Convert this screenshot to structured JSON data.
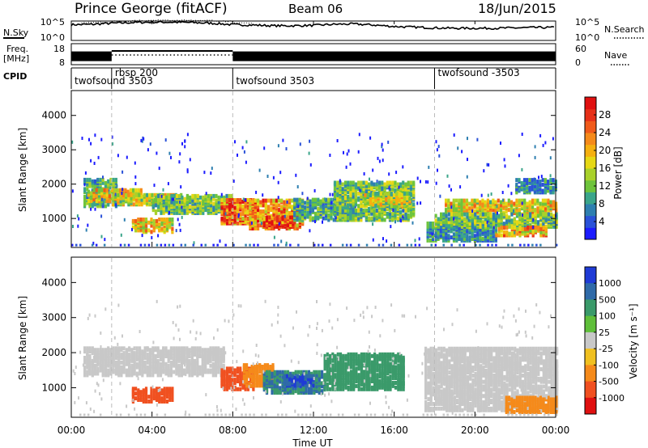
{
  "header": {
    "title": "Prince George (fitACF)",
    "beam": "Beam 06",
    "date": "18/Jun/2015"
  },
  "chart_data": [
    {
      "type": "line",
      "name": "noise",
      "ylabel": "N.Sky",
      "right_label": "N.Search",
      "yticks_left": [
        "10^5",
        "10^0"
      ],
      "yticks_right": [
        "10^5",
        "10^0"
      ],
      "x": [
        0,
        1,
        2,
        3,
        4,
        5,
        6,
        7,
        8,
        9,
        10,
        11,
        12,
        13,
        14,
        15,
        16,
        17,
        18,
        19,
        20,
        21,
        22,
        23,
        24
      ],
      "series": [
        {
          "values": [
            4.2,
            4.3,
            4.6,
            4.8,
            4.9,
            4.9,
            4.8,
            4.6,
            4.2,
            4.1,
            3.9,
            3.9,
            4.0,
            4.3,
            4.4,
            4.1,
            3.7,
            3.5,
            3.3,
            3.2,
            3.2,
            3.2,
            3.3,
            3.4,
            3.4
          ]
        }
      ]
    },
    {
      "type": "line",
      "name": "freq",
      "ylabel": "Freq.",
      "yunit": "[MHz]",
      "right_label": "Nave",
      "yticks_left": [
        "18",
        "8"
      ],
      "yticks_right": [
        "60",
        "0"
      ],
      "segments": [
        {
          "from": 0,
          "to": 2,
          "value": 11.5
        },
        {
          "from": 2,
          "to": 8,
          "value": 13.0
        },
        {
          "from": 8,
          "to": 24,
          "value": 11.5
        }
      ]
    },
    {
      "type": "table",
      "name": "cpid",
      "label": "CPID",
      "entries": [
        {
          "start": 0,
          "text": "twofsound 3503"
        },
        {
          "start": 2,
          "text": "rbsp 200"
        },
        {
          "start": 8,
          "text": "twofsound 3503"
        },
        {
          "start": 18,
          "text": "twofsound -3503"
        }
      ]
    },
    {
      "type": "heatmap",
      "name": "power",
      "ylabel": "Slant Range [km]",
      "yticks": [
        1000,
        2000,
        3000,
        4000
      ],
      "ylim": [
        180,
        4700
      ],
      "colorbar": {
        "label": "Power [dB]",
        "ticks": [
          4,
          8,
          12,
          16,
          20,
          24,
          28
        ],
        "range": [
          0,
          32
        ],
        "colors": [
          "#1c1cff",
          "#2a52d8",
          "#2e7fb0",
          "#3aa58a",
          "#6ec43c",
          "#a9d12a",
          "#e6d815",
          "#f5b010",
          "#f58a1a",
          "#f05a1a",
          "#e63018",
          "#e01010"
        ]
      },
      "regions": [
        {
          "t0": 0.6,
          "t1": 2.2,
          "r0": 1300,
          "r1": 2100,
          "v": 10
        },
        {
          "t0": 0.8,
          "t1": 3.5,
          "r0": 1450,
          "r1": 1800,
          "v": 18
        },
        {
          "t0": 2.0,
          "t1": 5.5,
          "r0": 1350,
          "r1": 1650,
          "v": 16
        },
        {
          "t0": 4.0,
          "t1": 8.0,
          "r0": 1100,
          "r1": 1600,
          "v": 12
        },
        {
          "t0": 3.0,
          "t1": 5.0,
          "r0": 550,
          "r1": 950,
          "v": 18
        },
        {
          "t0": 7.4,
          "t1": 9.2,
          "r0": 800,
          "r1": 1500,
          "v": 24
        },
        {
          "t0": 8.8,
          "t1": 11.5,
          "r0": 650,
          "r1": 1500,
          "v": 22
        },
        {
          "t0": 9.5,
          "t1": 11.0,
          "r0": 700,
          "r1": 1000,
          "v": 28
        },
        {
          "t0": 11.0,
          "t1": 14.0,
          "r0": 900,
          "r1": 1500,
          "v": 10
        },
        {
          "t0": 13.0,
          "t1": 17.0,
          "r0": 900,
          "r1": 2000,
          "v": 12
        },
        {
          "t0": 14.5,
          "t1": 16.8,
          "r0": 1300,
          "r1": 1700,
          "v": 16
        },
        {
          "t0": 17.6,
          "t1": 21.0,
          "r0": 300,
          "r1": 800,
          "v": 8
        },
        {
          "t0": 18.5,
          "t1": 24.0,
          "r0": 1100,
          "r1": 1500,
          "v": 18
        },
        {
          "t0": 18.0,
          "t1": 24.0,
          "r0": 700,
          "r1": 1100,
          "v": 12
        },
        {
          "t0": 21.0,
          "t1": 23.5,
          "r0": 450,
          "r1": 700,
          "v": 20
        },
        {
          "t0": 22.0,
          "t1": 24.0,
          "r0": 1700,
          "r1": 2100,
          "v": 8
        }
      ]
    },
    {
      "type": "heatmap",
      "name": "velocity",
      "ylabel": "Slant Range [km]",
      "xlabel": "Time UT",
      "xticks": [
        "00:00",
        "04:00",
        "08:00",
        "12:00",
        "16:00",
        "20:00",
        "00:00"
      ],
      "yticks": [
        1000,
        2000,
        3000,
        4000
      ],
      "ylim": [
        180,
        4700
      ],
      "colorbar": {
        "label": "Velocity [m s⁻¹]",
        "ticks": [
          "1000",
          "500",
          "100",
          "25",
          "-25",
          "-100",
          "-500",
          "-1000"
        ],
        "colors": [
          "#1f3bd6",
          "#2f6aa8",
          "#3a9a6a",
          "#5fbf3a",
          "#c8c8c8",
          "#f0c020",
          "#f58a1a",
          "#f05020",
          "#e01010"
        ]
      },
      "regions": [
        {
          "t0": 0.6,
          "t1": 7.5,
          "r0": 1300,
          "r1": 2100,
          "v": 0
        },
        {
          "t0": 3.0,
          "t1": 5.0,
          "r0": 550,
          "r1": 950,
          "v": -500
        },
        {
          "t0": 7.4,
          "t1": 9.0,
          "r0": 900,
          "r1": 1500,
          "v": -500
        },
        {
          "t0": 8.5,
          "t1": 10.0,
          "r0": 1000,
          "r1": 1600,
          "v": -100
        },
        {
          "t0": 9.5,
          "t1": 12.5,
          "r0": 800,
          "r1": 1400,
          "v": 300
        },
        {
          "t0": 10.5,
          "t1": 12.0,
          "r0": 1000,
          "r1": 1300,
          "v": 800
        },
        {
          "t0": 12.5,
          "t1": 16.5,
          "r0": 900,
          "r1": 1900,
          "v": 150
        },
        {
          "t0": 17.5,
          "t1": 24.0,
          "r0": 300,
          "r1": 2100,
          "v": 0
        },
        {
          "t0": 21.5,
          "t1": 24.0,
          "r0": 250,
          "r1": 700,
          "v": -100
        }
      ]
    }
  ]
}
